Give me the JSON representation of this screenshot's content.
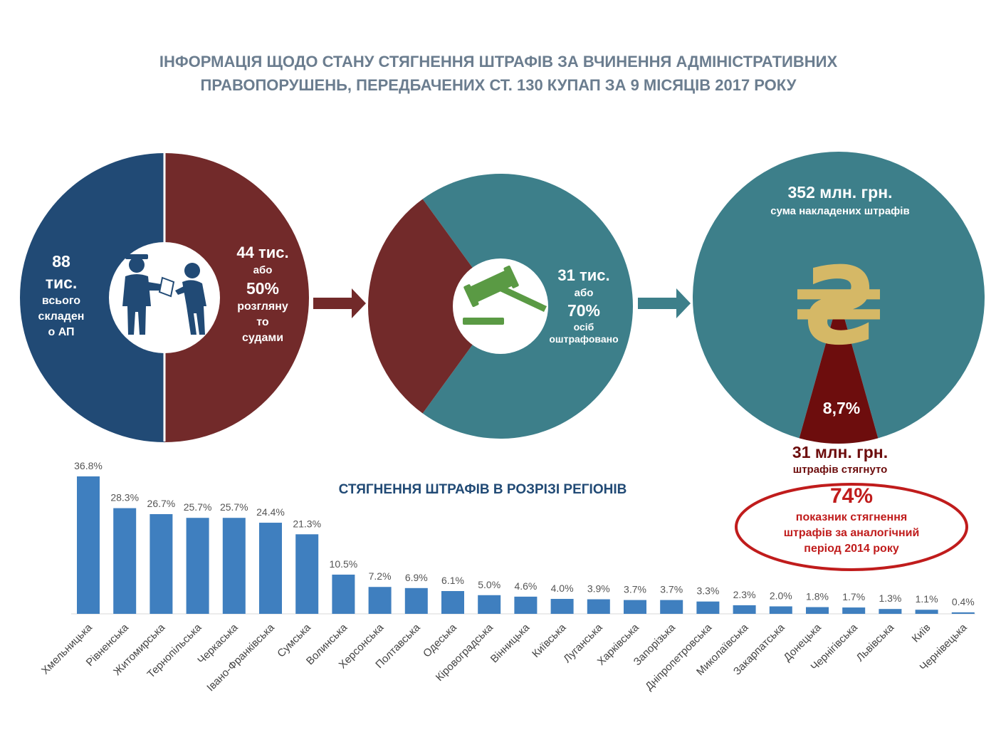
{
  "title": {
    "line1": "ІНФОРМАЦІЯ ЩОДО СТАНУ СТЯГНЕННЯ ШТРАФІВ ЗА ВЧИНЕННЯ АДМІНІСТРАТИВНИХ",
    "line2": "ПРАВОПОРУШЕНЬ, ПЕРЕДБАЧЕНИХ СТ. 130 КУПАП ЗА 9 МІСЯЦІВ 2017 РОКУ"
  },
  "colors": {
    "navy": "#214a75",
    "maroon": "#722a2a",
    "teal": "#3d7f8a",
    "bar": "#3f7fbf",
    "dark_red": "#6d0d0d",
    "ellipse": "#c01c1c",
    "hryvnia": "#d5b866",
    "gavel": "#5a9a44"
  },
  "icons": {
    "pie1": "police-officer-icon",
    "pie2": "gavel-icon",
    "pie3": "hryvnia-icon"
  },
  "pie1": {
    "left_value": "88",
    "left_unit": "тис.",
    "left_l1": "всього",
    "left_l2": "складен",
    "left_l3": "о АП",
    "right_value": "44 тис.",
    "right_or": "або",
    "right_pct": "50%",
    "right_l1": "розгляну",
    "right_l2": "то",
    "right_l3": "судами"
  },
  "pie2": {
    "value": "31 тис.",
    "or": "або",
    "pct": "70%",
    "l1": "осіб",
    "l2": "оштрафовано"
  },
  "pie3": {
    "amount": "352 млн. грн.",
    "amount_label": "сума накладених штрафів",
    "pct": "8,7%",
    "collected": "31 млн. грн.",
    "collected_label": "штрафів стягнуто"
  },
  "ellipse": {
    "pct": "74%",
    "l1": "показник стягнення",
    "l2": "штрафів за аналогічний",
    "l3": "період 2014 року"
  },
  "chart_data": [
    {
      "type": "pie",
      "slices": [
        {
          "label": "всього складено АП",
          "value": 50
        },
        {
          "label": "розглянуто судами",
          "value": 50
        }
      ]
    },
    {
      "type": "pie",
      "slices": [
        {
          "label": "осіб оштрафовано",
          "value": 70
        },
        {
          "label": "",
          "value": 30
        }
      ]
    },
    {
      "type": "pie",
      "slices": [
        {
          "label": "сума накладених штрафів",
          "value": 91.3
        },
        {
          "label": "штрафів стягнуто",
          "value": 8.7
        }
      ]
    },
    {
      "type": "bar",
      "title": "СТЯГНЕННЯ ШТРАФІВ В РОЗРІЗІ РЕГІОНІВ",
      "categories": [
        "Хмельницька",
        "Рівненська",
        "Житомирська",
        "Тернопільська",
        "Черкаська",
        "Івано-Франківська",
        "Сумська",
        "Волинська",
        "Херсонська",
        "Полтавська",
        "Одеська",
        "Кіровоградська",
        "Вінницька",
        "Київська",
        "Луганська",
        "Харківська",
        "Запорізька",
        "Дніпропетровська",
        "Миколаївська",
        "Закарпатська",
        "Донецька",
        "Чернігівська",
        "Львівська",
        "Київ",
        "Чернівецька"
      ],
      "values": [
        36.8,
        28.3,
        26.7,
        25.7,
        25.7,
        24.4,
        21.3,
        10.5,
        7.2,
        6.9,
        6.1,
        5.0,
        4.6,
        4.0,
        3.9,
        3.7,
        3.7,
        3.3,
        2.3,
        2.0,
        1.8,
        1.7,
        1.3,
        1.1,
        0.4
      ],
      "labels": [
        "36.8%",
        "28.3%",
        "26.7%",
        "25.7%",
        "25.7%",
        "24.4%",
        "21.3%",
        "10.5%",
        "7.2%",
        "6.9%",
        "6.1%",
        "5.0%",
        "4.6%",
        "4.0%",
        "3.9%",
        "3.7%",
        "3.7%",
        "3.3%",
        "2.3%",
        "2.0%",
        "1.8%",
        "1.7%",
        "1.3%",
        "1.1%",
        "0.4%"
      ],
      "ylim": [
        0,
        40
      ],
      "grid": false
    }
  ]
}
